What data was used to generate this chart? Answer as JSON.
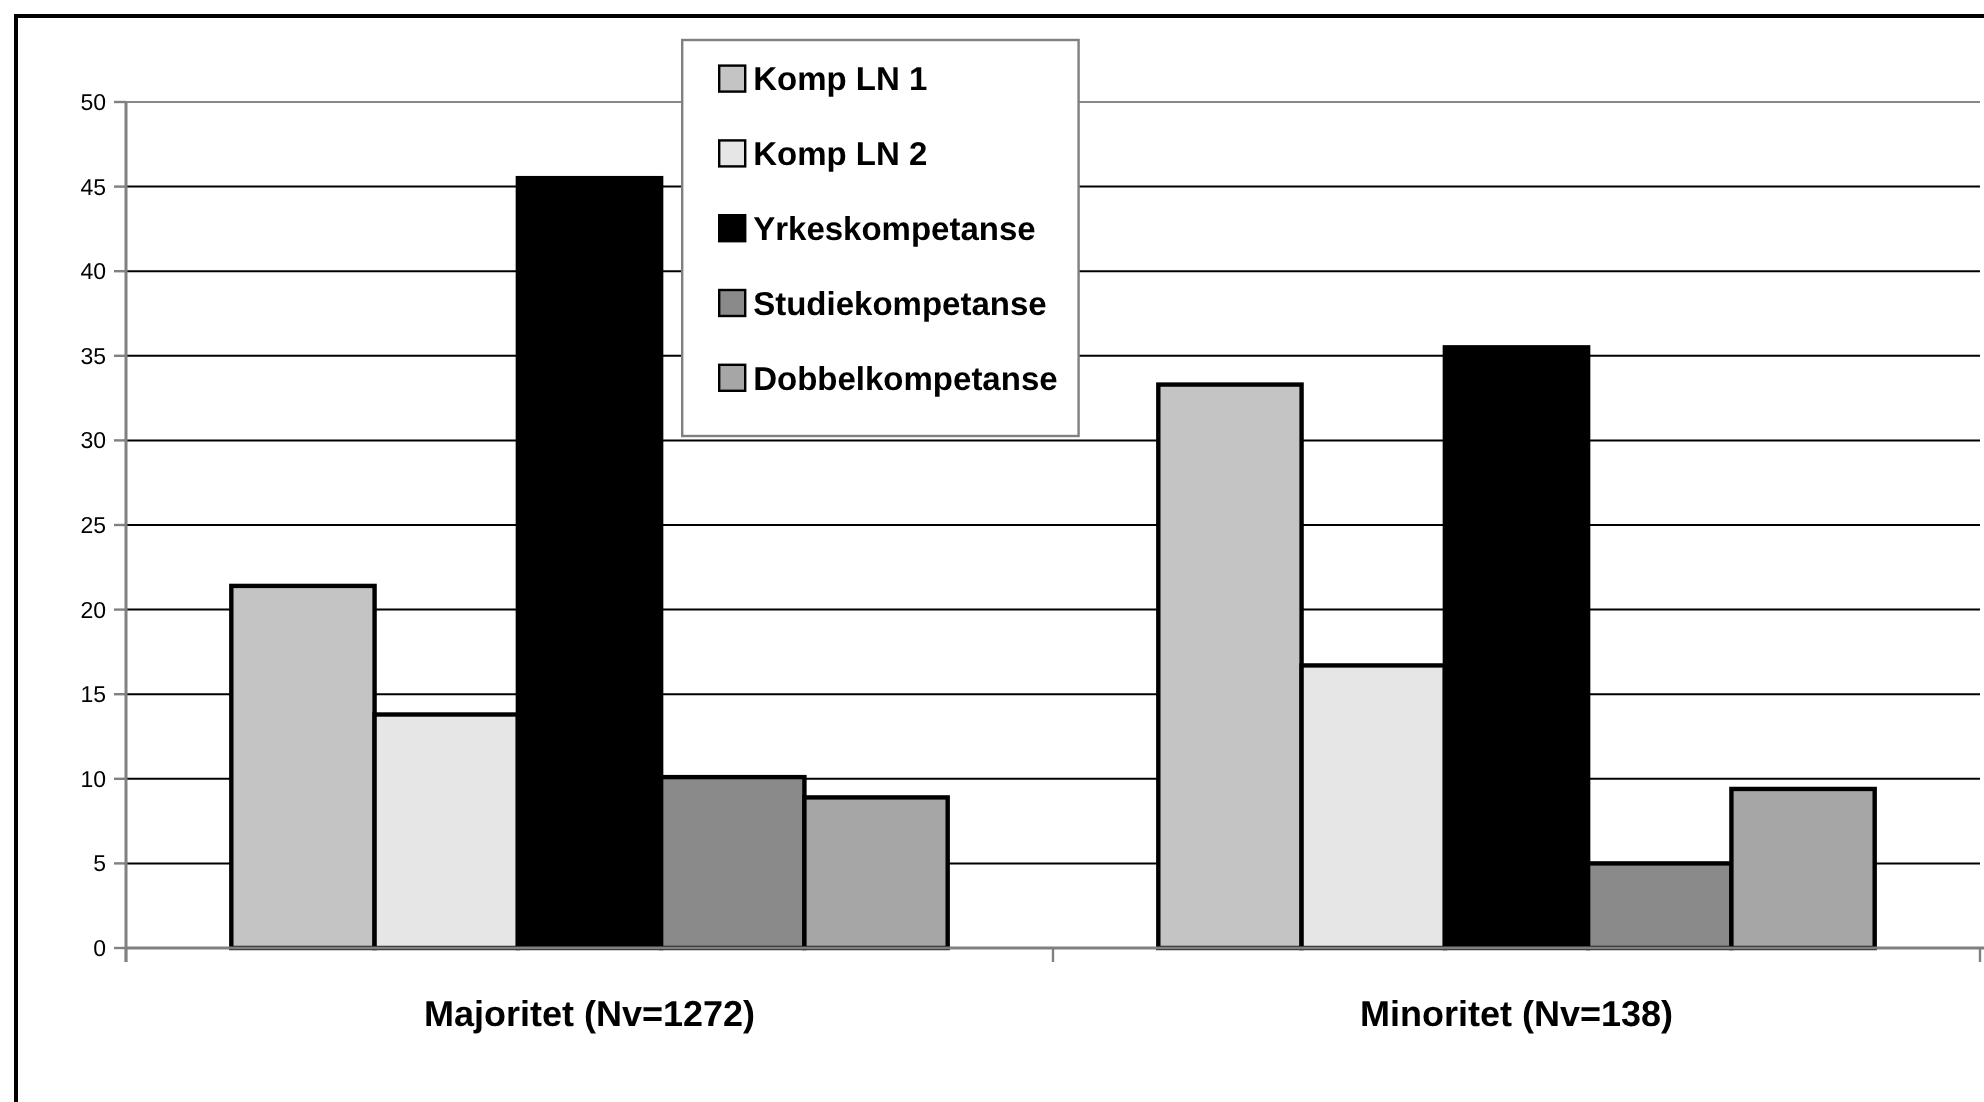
{
  "chart_data": {
    "type": "bar",
    "categories": [
      "Majoritet (Nv=1272)",
      "Minoritet (Nv=138)"
    ],
    "series": [
      {
        "name": "Komp LN 1",
        "color": "#c4c4c4",
        "values": [
          21.4,
          33.3
        ]
      },
      {
        "name": "Komp LN 2",
        "color": "#e6e6e6",
        "values": [
          13.8,
          16.7
        ]
      },
      {
        "name": "Yrkeskompetanse",
        "color": "#000000",
        "values": [
          45.5,
          35.5
        ]
      },
      {
        "name": "Studiekompetanse",
        "color": "#8a8a8a",
        "values": [
          10.1,
          5.0
        ]
      },
      {
        "name": "Dobbelkompetanse",
        "color": "#a6a6a6",
        "values": [
          8.9,
          9.4
        ]
      }
    ],
    "ylim": [
      0,
      50
    ],
    "yticks": [
      0,
      5,
      10,
      15,
      20,
      25,
      30,
      35,
      40,
      45,
      50
    ],
    "grid": "y",
    "legend": "top"
  }
}
